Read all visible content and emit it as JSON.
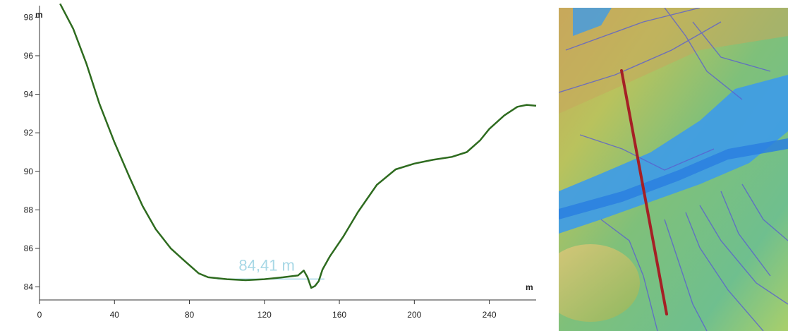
{
  "chart_data": {
    "type": "line",
    "x_unit": "m",
    "y_unit": "m",
    "xlim": [
      0,
      265
    ],
    "ylim": [
      83.8,
      98.6
    ],
    "xticks": [
      0,
      40,
      80,
      120,
      160,
      200,
      240
    ],
    "yticks": [
      84,
      86,
      88,
      90,
      92,
      94,
      96,
      98
    ],
    "grid": false,
    "line_color": "#2e6b1f",
    "series": [
      {
        "x": [
          11,
          18,
          25,
          32,
          40,
          48,
          55,
          62,
          70,
          78,
          85,
          90,
          100,
          110,
          120,
          130,
          138,
          141,
          143,
          145,
          147,
          149,
          151,
          155,
          162,
          170,
          180,
          190,
          200,
          210,
          220,
          228,
          235,
          240,
          248,
          255,
          260,
          265
        ],
        "y": [
          98.7,
          97.4,
          95.6,
          93.5,
          91.5,
          89.7,
          88.2,
          87.0,
          86.0,
          85.3,
          84.7,
          84.5,
          84.4,
          84.35,
          84.4,
          84.5,
          84.6,
          84.85,
          84.5,
          83.95,
          84.05,
          84.3,
          84.9,
          85.6,
          86.6,
          87.9,
          89.3,
          90.1,
          90.4,
          90.6,
          90.75,
          91.0,
          91.6,
          92.2,
          92.9,
          93.35,
          93.45,
          93.4
        ]
      }
    ],
    "annotation": {
      "text": "84,41 m",
      "color": "#a8d8e6",
      "level": 84.41,
      "x_from": 95,
      "x_to": 152
    }
  },
  "map": {
    "profile_line_color": "#a52025",
    "water_color": "#3d9be9"
  }
}
